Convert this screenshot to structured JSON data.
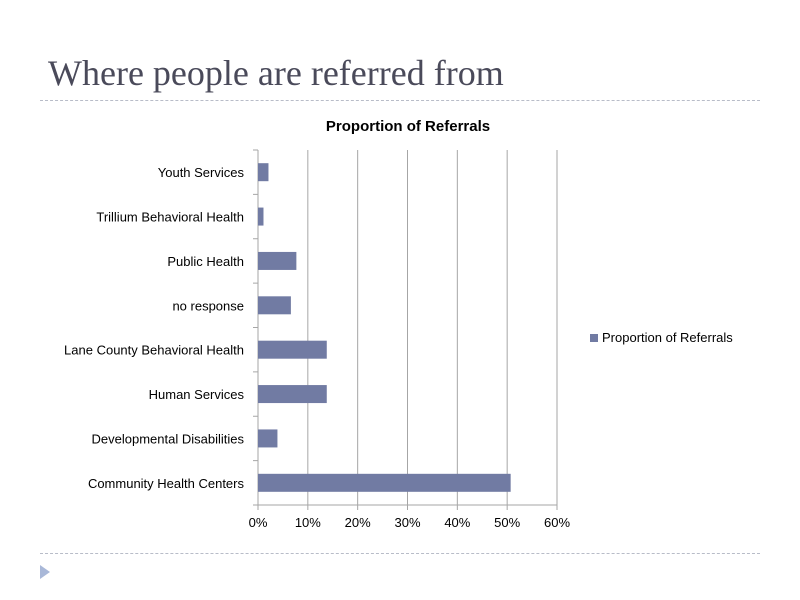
{
  "slide": {
    "title": "Where people are referred from"
  },
  "chart_data": {
    "type": "bar",
    "orientation": "horizontal",
    "title": "Proportion of Referrals",
    "categories": [
      "Youth Services",
      "Trillium Behavioral Health",
      "Public Health",
      "no response",
      "Lane County Behavioral Health",
      "Human Services",
      "Developmental Disabilities",
      "Community Health Centers"
    ],
    "series": [
      {
        "name": "Proportion of Referrals",
        "values": [
          2.1,
          1.1,
          7.7,
          6.6,
          13.8,
          13.8,
          3.9,
          50.7
        ],
        "color": "#717ba3"
      }
    ],
    "xlim": [
      0,
      60
    ],
    "xticks": [
      "0%",
      "10%",
      "20%",
      "30%",
      "40%",
      "50%",
      "60%"
    ],
    "xlabel": "",
    "ylabel": "",
    "grid": true,
    "legend": "right"
  }
}
